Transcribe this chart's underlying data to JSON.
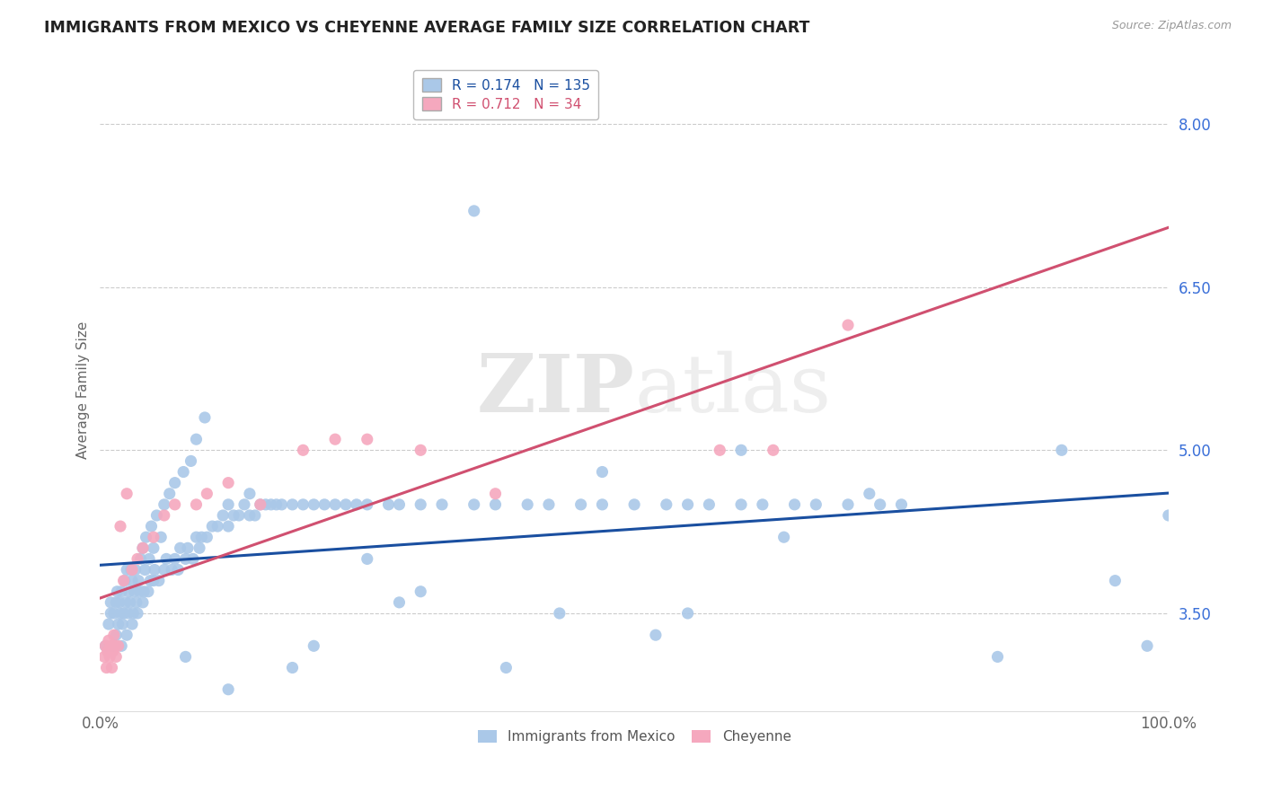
{
  "title": "IMMIGRANTS FROM MEXICO VS CHEYENNE AVERAGE FAMILY SIZE CORRELATION CHART",
  "source": "Source: ZipAtlas.com",
  "ylabel": "Average Family Size",
  "watermark_zip": "ZIP",
  "watermark_atlas": "atlas",
  "series1_label": "Immigrants from Mexico",
  "series2_label": "Cheyenne",
  "series1_R": 0.174,
  "series1_N": 135,
  "series2_R": 0.712,
  "series2_N": 34,
  "series1_color": "#aac8e8",
  "series2_color": "#f5a8be",
  "line1_color": "#1a4fa0",
  "line2_color": "#d05070",
  "xlim": [
    0.0,
    1.0
  ],
  "ylim": [
    2.6,
    8.5
  ],
  "yticks": [
    3.5,
    5.0,
    6.5,
    8.0
  ],
  "xtick_vals": [
    0.0,
    1.0
  ],
  "xticklabels": [
    "0.0%",
    "100.0%"
  ],
  "title_fontsize": 12.5,
  "ylabel_fontsize": 11,
  "tick_fontsize": 12,
  "legend_fontsize": 11,
  "source_fontsize": 9,
  "background_color": "#ffffff",
  "series1_x": [
    0.005,
    0.008,
    0.01,
    0.01,
    0.012,
    0.013,
    0.015,
    0.015,
    0.016,
    0.017,
    0.018,
    0.019,
    0.02,
    0.02,
    0.021,
    0.022,
    0.023,
    0.024,
    0.025,
    0.025,
    0.026,
    0.027,
    0.028,
    0.029,
    0.03,
    0.03,
    0.031,
    0.032,
    0.033,
    0.034,
    0.035,
    0.036,
    0.037,
    0.038,
    0.04,
    0.04,
    0.041,
    0.042,
    0.043,
    0.045,
    0.046,
    0.047,
    0.048,
    0.05,
    0.05,
    0.051,
    0.053,
    0.055,
    0.057,
    0.06,
    0.06,
    0.062,
    0.065,
    0.067,
    0.07,
    0.07,
    0.073,
    0.075,
    0.078,
    0.08,
    0.082,
    0.085,
    0.087,
    0.09,
    0.09,
    0.093,
    0.095,
    0.098,
    0.1,
    0.105,
    0.11,
    0.115,
    0.12,
    0.12,
    0.125,
    0.13,
    0.135,
    0.14,
    0.14,
    0.145,
    0.15,
    0.155,
    0.16,
    0.165,
    0.17,
    0.18,
    0.19,
    0.2,
    0.21,
    0.22,
    0.23,
    0.24,
    0.25,
    0.27,
    0.28,
    0.3,
    0.32,
    0.35,
    0.37,
    0.4,
    0.42,
    0.45,
    0.47,
    0.5,
    0.53,
    0.55,
    0.57,
    0.6,
    0.62,
    0.65,
    0.67,
    0.7,
    0.73,
    0.75,
    0.55,
    0.6,
    0.47,
    0.38,
    0.25,
    0.3,
    0.2,
    0.43,
    0.52,
    0.64,
    0.72,
    0.84,
    0.9,
    0.95,
    0.98,
    1.0,
    0.35,
    0.28,
    0.18,
    0.12,
    0.08
  ],
  "series1_y": [
    3.2,
    3.4,
    3.5,
    3.6,
    3.2,
    3.5,
    3.3,
    3.6,
    3.7,
    3.4,
    3.6,
    3.5,
    3.2,
    3.7,
    3.4,
    3.5,
    3.8,
    3.6,
    3.3,
    3.9,
    3.5,
    3.7,
    3.6,
    3.9,
    3.4,
    3.8,
    3.5,
    3.7,
    3.9,
    3.6,
    3.5,
    3.8,
    3.7,
    4.0,
    3.6,
    4.1,
    3.7,
    3.9,
    4.2,
    3.7,
    4.0,
    3.8,
    4.3,
    3.8,
    4.1,
    3.9,
    4.4,
    3.8,
    4.2,
    3.9,
    4.5,
    4.0,
    4.6,
    3.9,
    4.0,
    4.7,
    3.9,
    4.1,
    4.8,
    4.0,
    4.1,
    4.9,
    4.0,
    4.2,
    5.1,
    4.1,
    4.2,
    5.3,
    4.2,
    4.3,
    4.3,
    4.4,
    4.3,
    4.5,
    4.4,
    4.4,
    4.5,
    4.4,
    4.6,
    4.4,
    4.5,
    4.5,
    4.5,
    4.5,
    4.5,
    4.5,
    4.5,
    4.5,
    4.5,
    4.5,
    4.5,
    4.5,
    4.5,
    4.5,
    4.5,
    4.5,
    4.5,
    4.5,
    4.5,
    4.5,
    4.5,
    4.5,
    4.5,
    4.5,
    4.5,
    4.5,
    4.5,
    4.5,
    4.5,
    4.5,
    4.5,
    4.5,
    4.5,
    4.5,
    3.5,
    5.0,
    4.8,
    3.0,
    4.0,
    3.7,
    3.2,
    3.5,
    3.3,
    4.2,
    4.6,
    3.1,
    5.0,
    3.8,
    3.2,
    4.4,
    7.2,
    3.6,
    3.0,
    2.8,
    3.1
  ],
  "series2_x": [
    0.004,
    0.005,
    0.006,
    0.007,
    0.008,
    0.009,
    0.01,
    0.011,
    0.012,
    0.013,
    0.014,
    0.015,
    0.017,
    0.019,
    0.022,
    0.025,
    0.03,
    0.035,
    0.04,
    0.05,
    0.06,
    0.07,
    0.09,
    0.1,
    0.12,
    0.15,
    0.19,
    0.22,
    0.25,
    0.3,
    0.37,
    0.58,
    0.63,
    0.7
  ],
  "series2_y": [
    3.1,
    3.2,
    3.0,
    3.15,
    3.25,
    3.1,
    3.2,
    3.0,
    3.15,
    3.3,
    3.2,
    3.1,
    3.2,
    4.3,
    3.8,
    4.6,
    3.9,
    4.0,
    4.1,
    4.2,
    4.4,
    4.5,
    4.5,
    4.6,
    4.7,
    4.5,
    5.0,
    5.1,
    5.1,
    5.0,
    4.6,
    5.0,
    5.0,
    6.15
  ]
}
